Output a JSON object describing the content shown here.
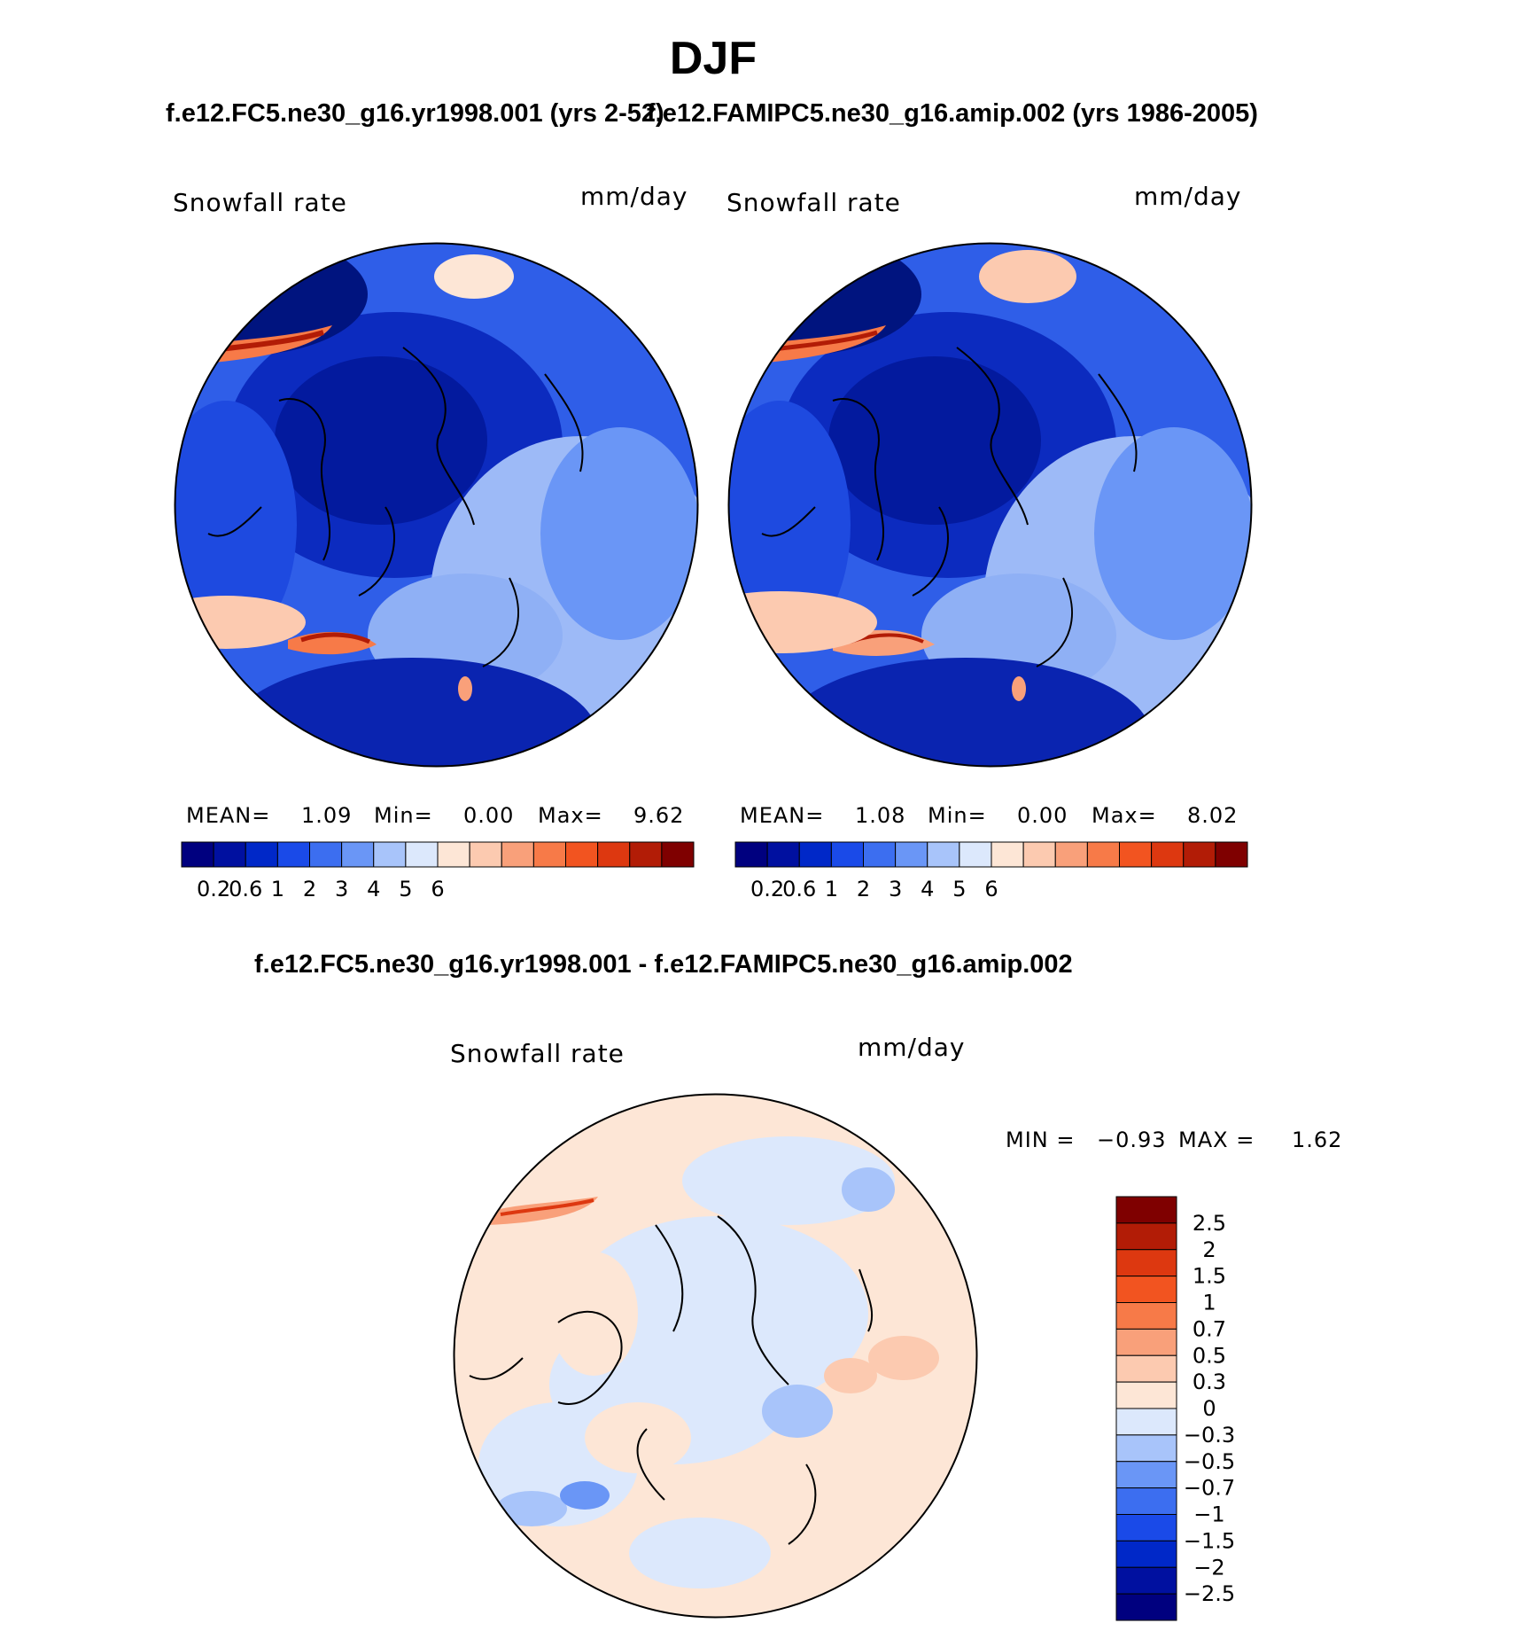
{
  "season": "DJF",
  "case_title_left": "f.e12.FC5.ne30_g16.yr1998.001 (yrs 2-52)",
  "case_title_right": "f.e12.FAMIPC5.ne30_g16.amip.002 (yrs 1986-2005)",
  "diff_title": "f.e12.FC5.ne30_g16.yr1998.001 - f.e12.FAMIPC5.ne30_g16.amip.002",
  "panels": [
    {
      "variable": "Snowfall rate",
      "units": "mm/day",
      "stats": {
        "mean_label": "MEAN=",
        "mean": "1.09",
        "min_label": "Min=",
        "min": "0.00",
        "max_label": "Max=",
        "max": "9.62"
      }
    },
    {
      "variable": "Snowfall rate",
      "units": "mm/day",
      "stats": {
        "mean_label": "MEAN=",
        "mean": "1.08",
        "min_label": "Min=",
        "min": "0.00",
        "max_label": "Max=",
        "max": "8.02"
      }
    }
  ],
  "diff_panel": {
    "variable": "Snowfall rate",
    "units": "mm/day",
    "stats": {
      "min_label": "MIN =",
      "min": "−0.93",
      "max_label": "MAX =",
      "max": "1.62"
    }
  },
  "colorbar_main": {
    "colors": [
      "#00007f",
      "#0010a0",
      "#0028c8",
      "#1a4ae8",
      "#3c6ef0",
      "#6a96f6",
      "#a8c4fa",
      "#dce8fc",
      "#fde6d6",
      "#fccab0",
      "#f9a07a",
      "#f77a48",
      "#f25420",
      "#dd3810",
      "#b21c06",
      "#7f0000"
    ],
    "tick_labels": [
      "0.2",
      "0.6",
      "1",
      "2",
      "3",
      "4",
      "5",
      "6"
    ]
  },
  "colorbar_diff": {
    "colors_top_to_bottom": [
      "#7f0000",
      "#b21c06",
      "#dd3810",
      "#f25420",
      "#f77a48",
      "#f9a07a",
      "#fccab0",
      "#fde6d6",
      "#dce8fc",
      "#a8c4fa",
      "#6a96f6",
      "#3c6ef0",
      "#1a4ae8",
      "#0028c8",
      "#0010a0",
      "#00007f"
    ],
    "tick_labels": [
      "2.5",
      "2",
      "1.5",
      "1",
      "0.7",
      "0.5",
      "0.3",
      "0",
      "−0.3",
      "−0.5",
      "−0.7",
      "−1",
      "−1.5",
      "−2",
      "−2.5"
    ]
  }
}
